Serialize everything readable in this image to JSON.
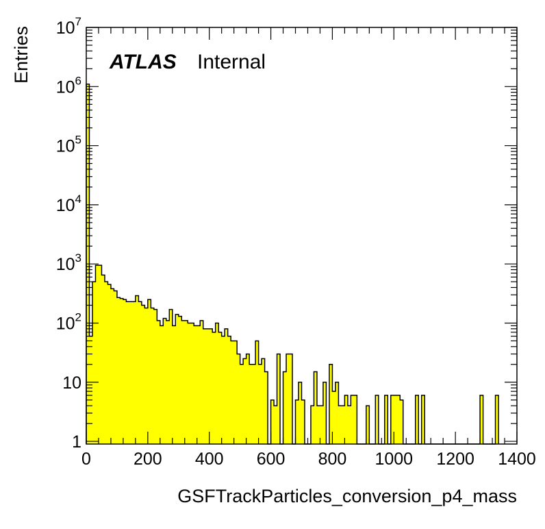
{
  "chart_data": {
    "type": "bar",
    "style": "histogram",
    "xlabel": "GSFTrackParticles_conversion_p4_mass",
    "ylabel": "Entries",
    "x_range": [
      0,
      1400
    ],
    "y_range": [
      0.9,
      10000000
    ],
    "y_scale": "log",
    "grid": false,
    "bin_width": 10,
    "fill_color": "#ffff00",
    "line_color": "#000000",
    "annotation": {
      "experiment": "ATLAS",
      "status": "Internal"
    },
    "x_ticks": [
      {
        "value": 0,
        "label": "0"
      },
      {
        "value": 200,
        "label": "200"
      },
      {
        "value": 400,
        "label": "400"
      },
      {
        "value": 600,
        "label": "600"
      },
      {
        "value": 800,
        "label": "800"
      },
      {
        "value": 1000,
        "label": "1000"
      },
      {
        "value": 1200,
        "label": "1200"
      },
      {
        "value": 1400,
        "label": "1400"
      }
    ],
    "y_ticks": [
      {
        "value": 1,
        "base": "1",
        "exp": ""
      },
      {
        "value": 10,
        "base": "10",
        "exp": ""
      },
      {
        "value": 100,
        "base": "10",
        "exp": "2"
      },
      {
        "value": 1000,
        "base": "10",
        "exp": "3"
      },
      {
        "value": 10000,
        "base": "10",
        "exp": "4"
      },
      {
        "value": 100000,
        "base": "10",
        "exp": "5"
      },
      {
        "value": 1000000,
        "base": "10",
        "exp": "6"
      },
      {
        "value": 10000000,
        "base": "10",
        "exp": "7"
      }
    ],
    "x": [
      5,
      15,
      25,
      35,
      45,
      55,
      65,
      75,
      85,
      95,
      105,
      115,
      125,
      135,
      145,
      155,
      165,
      175,
      185,
      195,
      205,
      215,
      225,
      235,
      245,
      255,
      265,
      275,
      285,
      295,
      305,
      315,
      325,
      335,
      345,
      355,
      365,
      375,
      385,
      395,
      405,
      415,
      425,
      435,
      445,
      455,
      465,
      475,
      485,
      495,
      505,
      515,
      525,
      535,
      545,
      555,
      565,
      575,
      585,
      595,
      605,
      615,
      625,
      635,
      645,
      655,
      665,
      675,
      685,
      695,
      705,
      715,
      725,
      735,
      745,
      755,
      765,
      775,
      785,
      795,
      805,
      815,
      825,
      835,
      845,
      855,
      865,
      875,
      885,
      895,
      905,
      915,
      925,
      935,
      945,
      955,
      965,
      975,
      985,
      995,
      1005,
      1015,
      1025,
      1035,
      1045,
      1055,
      1065,
      1075,
      1085,
      1095,
      1105,
      1115,
      1125,
      1135,
      1145,
      1155,
      1165,
      1175,
      1185,
      1195,
      1205,
      1215,
      1225,
      1235,
      1245,
      1255,
      1265,
      1275,
      1285,
      1295,
      1305,
      1315,
      1325,
      1335
    ],
    "values": [
      1100000,
      60,
      500,
      950,
      950,
      650,
      500,
      450,
      380,
      350,
      270,
      260,
      250,
      230,
      230,
      230,
      290,
      230,
      200,
      180,
      250,
      180,
      170,
      110,
      90,
      120,
      110,
      170,
      90,
      140,
      130,
      110,
      110,
      100,
      100,
      90,
      90,
      110,
      80,
      80,
      80,
      70,
      100,
      70,
      60,
      80,
      60,
      50,
      50,
      30,
      20,
      25,
      30,
      20,
      20,
      50,
      20,
      25,
      15,
      0,
      5,
      4,
      30,
      0,
      15,
      30,
      30,
      0,
      5,
      10,
      5,
      0,
      0,
      4,
      15,
      4,
      4,
      10,
      0,
      20,
      7,
      10,
      4,
      4,
      6,
      4,
      6,
      6,
      0,
      0,
      0,
      4,
      0,
      0,
      6,
      0,
      0,
      6,
      0,
      6,
      6,
      6,
      5,
      0,
      0,
      0,
      0,
      6,
      0,
      6,
      0,
      0,
      0,
      0,
      0,
      0,
      0,
      0,
      0,
      0,
      0,
      0,
      0,
      0,
      0,
      0,
      0,
      0,
      6,
      0,
      0,
      0,
      0,
      6
    ]
  }
}
